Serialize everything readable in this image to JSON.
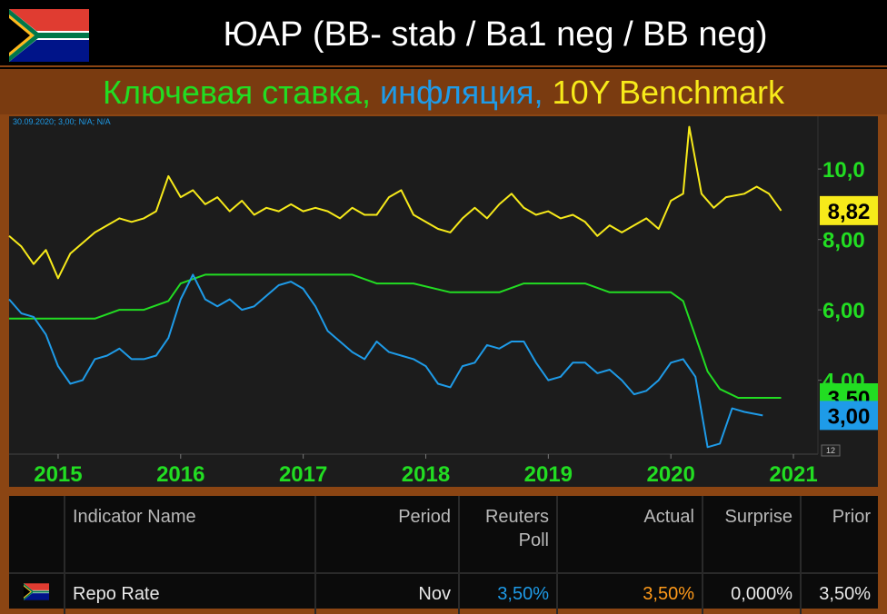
{
  "header": {
    "title": "ЮАР (BB- stab / Ba1 neg / BB neg)",
    "subtitle": {
      "part1": "Ключевая ставка,",
      "part2": "инфляция,",
      "part3": "10Y Benchmark"
    },
    "flag_icon": "south-africa-flag-icon"
  },
  "chart_data": {
    "type": "line",
    "info_label": "30.09.2020; 3,00; N/A; N/A",
    "x_ticks": [
      "2015",
      "2016",
      "2017",
      "2018",
      "2019",
      "2020",
      "2021"
    ],
    "y_ticks": [
      "4,00",
      "6,00",
      "8,00",
      "10,0"
    ],
    "ylim": [
      1.9,
      11.5
    ],
    "xlim": [
      2014.6,
      2021.2
    ],
    "last_values": {
      "bond": "8,82",
      "rate": "3,50",
      "cpi": "3,00"
    },
    "corner_label": "12",
    "colors": {
      "bond": "#f7ea1a",
      "rate": "#22dd22",
      "cpi": "#1e9be8",
      "background": "#1c1c1c"
    },
    "series": [
      {
        "key": "bond",
        "x": [
          2014.6,
          2014.7,
          2014.8,
          2014.9,
          2015.0,
          2015.1,
          2015.2,
          2015.3,
          2015.4,
          2015.5,
          2015.6,
          2015.7,
          2015.8,
          2015.9,
          2016.0,
          2016.1,
          2016.2,
          2016.3,
          2016.4,
          2016.5,
          2016.6,
          2016.7,
          2016.8,
          2016.9,
          2017.0,
          2017.1,
          2017.2,
          2017.3,
          2017.4,
          2017.5,
          2017.6,
          2017.7,
          2017.8,
          2017.9,
          2018.0,
          2018.1,
          2018.2,
          2018.3,
          2018.4,
          2018.5,
          2018.6,
          2018.7,
          2018.8,
          2018.9,
          2019.0,
          2019.1,
          2019.2,
          2019.3,
          2019.4,
          2019.5,
          2019.6,
          2019.7,
          2019.8,
          2019.9,
          2020.0,
          2020.1,
          2020.15,
          2020.25,
          2020.35,
          2020.45,
          2020.6,
          2020.7,
          2020.8,
          2020.9
        ],
        "values": [
          8.1,
          7.8,
          7.3,
          7.7,
          6.9,
          7.6,
          7.9,
          8.2,
          8.4,
          8.6,
          8.5,
          8.6,
          8.8,
          9.8,
          9.2,
          9.4,
          9.0,
          9.2,
          8.8,
          9.1,
          8.7,
          8.9,
          8.8,
          9.0,
          8.8,
          8.9,
          8.8,
          8.6,
          8.9,
          8.7,
          8.7,
          9.2,
          9.4,
          8.7,
          8.5,
          8.3,
          8.2,
          8.6,
          8.9,
          8.6,
          9.0,
          9.3,
          8.9,
          8.7,
          8.8,
          8.6,
          8.7,
          8.5,
          8.1,
          8.4,
          8.2,
          8.4,
          8.6,
          8.3,
          9.1,
          9.3,
          11.2,
          9.3,
          8.9,
          9.2,
          9.3,
          9.5,
          9.3,
          8.82
        ]
      },
      {
        "key": "rate",
        "x": [
          2014.6,
          2015.0,
          2015.3,
          2015.5,
          2015.7,
          2015.9,
          2016.0,
          2016.2,
          2016.5,
          2016.8,
          2017.1,
          2017.4,
          2017.6,
          2017.9,
          2018.2,
          2018.4,
          2018.6,
          2018.8,
          2019.0,
          2019.3,
          2019.5,
          2019.6,
          2019.8,
          2020.0,
          2020.1,
          2020.2,
          2020.3,
          2020.4,
          2020.55,
          2020.9
        ],
        "values": [
          5.75,
          5.75,
          5.75,
          6.0,
          6.0,
          6.25,
          6.75,
          7.0,
          7.0,
          7.0,
          7.0,
          7.0,
          6.75,
          6.75,
          6.5,
          6.5,
          6.5,
          6.75,
          6.75,
          6.75,
          6.5,
          6.5,
          6.5,
          6.5,
          6.25,
          5.25,
          4.25,
          3.75,
          3.5,
          3.5
        ]
      },
      {
        "key": "cpi",
        "x": [
          2014.6,
          2014.7,
          2014.8,
          2014.9,
          2015.0,
          2015.1,
          2015.2,
          2015.3,
          2015.4,
          2015.5,
          2015.6,
          2015.7,
          2015.8,
          2015.9,
          2016.0,
          2016.1,
          2016.2,
          2016.3,
          2016.4,
          2016.5,
          2016.6,
          2016.7,
          2016.8,
          2016.9,
          2017.0,
          2017.1,
          2017.2,
          2017.3,
          2017.4,
          2017.5,
          2017.6,
          2017.7,
          2017.8,
          2017.9,
          2018.0,
          2018.1,
          2018.2,
          2018.3,
          2018.4,
          2018.5,
          2018.6,
          2018.7,
          2018.8,
          2018.9,
          2019.0,
          2019.1,
          2019.2,
          2019.3,
          2019.4,
          2019.5,
          2019.6,
          2019.7,
          2019.8,
          2019.9,
          2020.0,
          2020.1,
          2020.2,
          2020.3,
          2020.4,
          2020.5,
          2020.6,
          2020.75
        ],
        "values": [
          6.3,
          5.9,
          5.8,
          5.3,
          4.4,
          3.9,
          4.0,
          4.6,
          4.7,
          4.9,
          4.6,
          4.6,
          4.7,
          5.2,
          6.3,
          7.0,
          6.3,
          6.1,
          6.3,
          6.0,
          6.1,
          6.4,
          6.7,
          6.8,
          6.6,
          6.1,
          5.4,
          5.1,
          4.8,
          4.6,
          5.1,
          4.8,
          4.7,
          4.6,
          4.4,
          3.9,
          3.8,
          4.4,
          4.5,
          5.0,
          4.9,
          5.1,
          5.1,
          4.5,
          4.0,
          4.1,
          4.5,
          4.5,
          4.2,
          4.3,
          4.0,
          3.6,
          3.7,
          4.0,
          4.5,
          4.6,
          4.1,
          2.1,
          2.2,
          3.2,
          3.1,
          3.0
        ]
      }
    ]
  },
  "table": {
    "headers": {
      "flag": "",
      "name": "Indicator Name",
      "period": "Period",
      "poll_line1": "Reuters",
      "poll_line2": "Poll",
      "actual": "Actual",
      "surprise": "Surprise",
      "prior": "Prior"
    },
    "rows": [
      {
        "flag_icon": "south-africa-flag-icon",
        "name": "Repo Rate",
        "period": "Nov",
        "poll": "3,50%",
        "actual": "3,50%",
        "surprise": "0,000%",
        "prior": "3,50%"
      }
    ]
  }
}
